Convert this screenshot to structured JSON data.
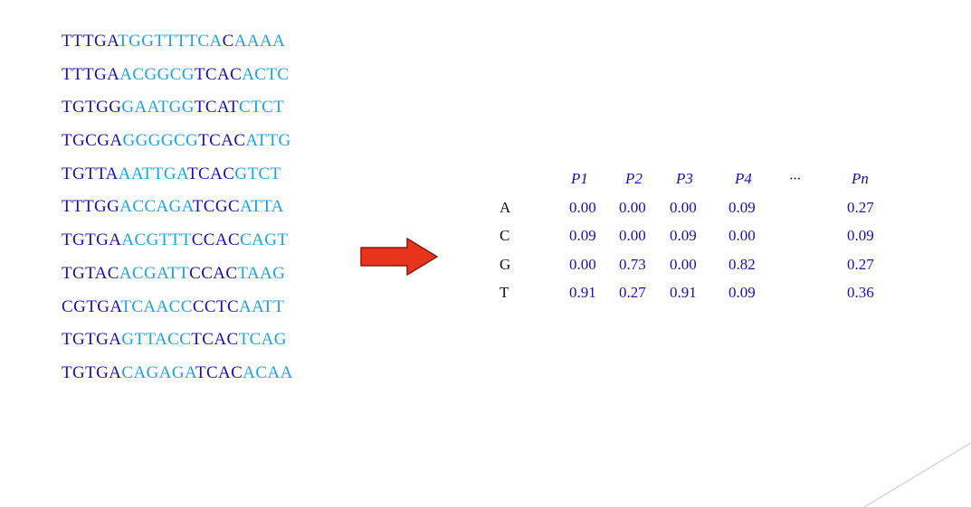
{
  "sequences": [
    [
      {
        "t": "TTTGA",
        "c": "d"
      },
      {
        "t": "TGGTTTTCA",
        "c": "l"
      },
      {
        "t": "C",
        "c": "d"
      },
      {
        "t": "AAAA",
        "c": "l"
      }
    ],
    [
      {
        "t": "TTTGA",
        "c": "d"
      },
      {
        "t": "ACGGCG",
        "c": "l"
      },
      {
        "t": "TCAC",
        "c": "d"
      },
      {
        "t": "ACTC",
        "c": "l"
      }
    ],
    [
      {
        "t": "TGTGG",
        "c": "d"
      },
      {
        "t": "GAATGG",
        "c": "l"
      },
      {
        "t": "TCAT",
        "c": "d"
      },
      {
        "t": "CTCT",
        "c": "l"
      }
    ],
    [
      {
        "t": "TGCGA",
        "c": "d"
      },
      {
        "t": "GGGGCG",
        "c": "l"
      },
      {
        "t": "TCAC",
        "c": "d"
      },
      {
        "t": "ATTG",
        "c": "l"
      }
    ],
    [
      {
        "t": "TGTTA",
        "c": "d"
      },
      {
        "t": "AATTGA",
        "c": "l"
      },
      {
        "t": "TCAC",
        "c": "d"
      },
      {
        "t": "GTCT",
        "c": "l"
      }
    ],
    [
      {
        "t": "TTTGG",
        "c": "d"
      },
      {
        "t": "ACCAGA",
        "c": "l"
      },
      {
        "t": "TCGC",
        "c": "d"
      },
      {
        "t": "ATTA",
        "c": "l"
      }
    ],
    [
      {
        "t": "TGTGA",
        "c": "d"
      },
      {
        "t": "ACGTTT",
        "c": "l"
      },
      {
        "t": "CCAC",
        "c": "d"
      },
      {
        "t": "CAGT",
        "c": "l"
      }
    ],
    [
      {
        "t": "TGTAC",
        "c": "d"
      },
      {
        "t": "ACGATT",
        "c": "l"
      },
      {
        "t": "CCAC",
        "c": "d"
      },
      {
        "t": "TAAG",
        "c": "l"
      }
    ],
    [
      {
        "t": "CGTGA",
        "c": "d"
      },
      {
        "t": "TCAACC",
        "c": "l"
      },
      {
        "t": "CCTC",
        "c": "d"
      },
      {
        "t": "AATT",
        "c": "l"
      }
    ],
    [
      {
        "t": "TGTGA",
        "c": "d"
      },
      {
        "t": "GTTACC",
        "c": "l"
      },
      {
        "t": "TCAC",
        "c": "d"
      },
      {
        "t": "TCAG",
        "c": "l"
      }
    ],
    [
      {
        "t": "TGTGA",
        "c": "d"
      },
      {
        "t": "CAGAGA",
        "c": "l"
      },
      {
        "t": "TCAC",
        "c": "d"
      },
      {
        "t": "ACAA",
        "c": "l"
      }
    ]
  ],
  "colors": {
    "dark_blue": "#1a0fb8",
    "light_blue": "#1aa3e6",
    "arrow_red": "#e8341c",
    "arrow_border": "#8a1a0a",
    "deco_line": "#d8d8d8"
  },
  "arrow_icon": "right-arrow-icon",
  "matrix": {
    "headers": [
      "P1",
      "P2",
      "P3",
      "P4",
      "···",
      "Pn"
    ],
    "rows": [
      {
        "label": "A",
        "values": [
          "0.00",
          "0.00",
          "0.00",
          "0.09",
          "",
          "0.27"
        ]
      },
      {
        "label": "C",
        "values": [
          "0.09",
          "0.00",
          "0.09",
          "0.00",
          "",
          "0.09"
        ]
      },
      {
        "label": "G",
        "values": [
          "0.00",
          "0.73",
          "0.00",
          "0.82",
          "",
          "0.27"
        ]
      },
      {
        "label": "T",
        "values": [
          "0.91",
          "0.27",
          "0.91",
          "0.09",
          "",
          "0.36"
        ]
      }
    ]
  }
}
